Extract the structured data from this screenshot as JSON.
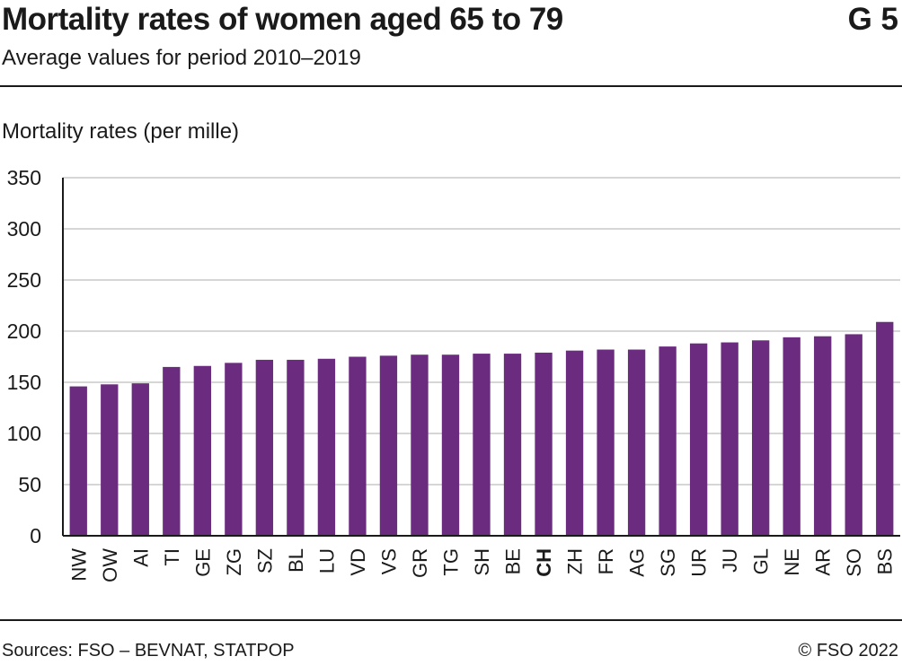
{
  "header": {
    "title": "Mortality rates of women aged 65 to 79",
    "figure_number": "G 5",
    "subtitle": "Average values for period 2010–2019"
  },
  "footer": {
    "source": "Sources: FSO – BEVNAT, STATPOP",
    "copyright": "© FSO 2022"
  },
  "colors": {
    "bar": "#6b2c7f",
    "grid": "#c8c8c8",
    "axis": "#1a1a1a",
    "text": "#1a1a1a"
  },
  "chart_data": {
    "type": "bar",
    "ylabel": "Mortality rates (per mille)",
    "xlabel": "",
    "ylim": [
      0,
      350
    ],
    "yticks": [
      0,
      50,
      100,
      150,
      200,
      250,
      300,
      350
    ],
    "grid": true,
    "highlight_category": "CH",
    "categories": [
      "NW",
      "OW",
      "AI",
      "TI",
      "GE",
      "ZG",
      "SZ",
      "BL",
      "LU",
      "VD",
      "VS",
      "GR",
      "TG",
      "SH",
      "BE",
      "CH",
      "ZH",
      "FR",
      "AG",
      "SG",
      "UR",
      "JU",
      "GL",
      "NE",
      "AR",
      "SO",
      "BS"
    ],
    "values": [
      146,
      148,
      149,
      165,
      166,
      169,
      172,
      172,
      173,
      175,
      176,
      177,
      177,
      178,
      178,
      179,
      181,
      182,
      182,
      185,
      188,
      189,
      191,
      194,
      195,
      197,
      209
    ]
  }
}
